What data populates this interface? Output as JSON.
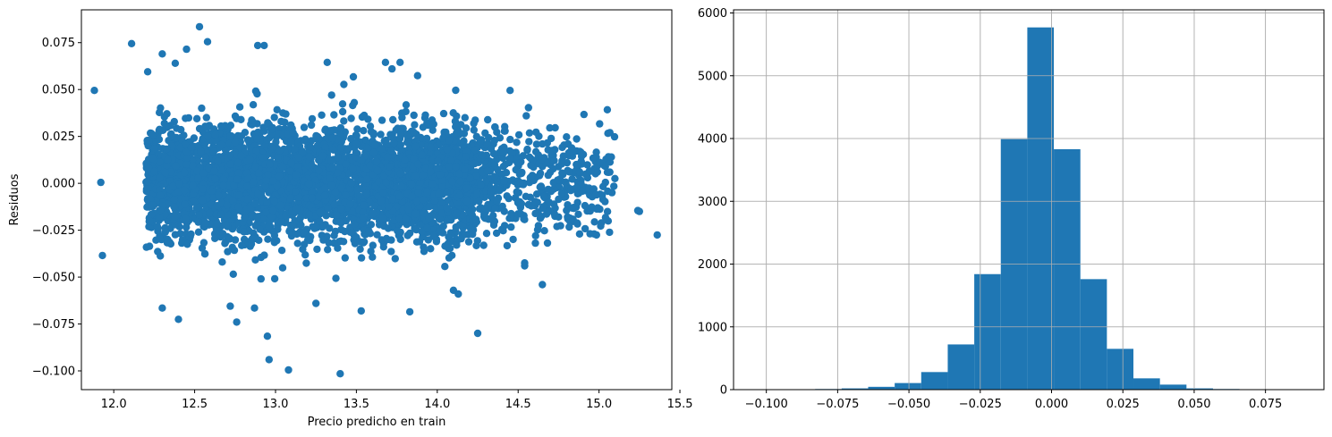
{
  "colors": {
    "series": "#1f77b4",
    "grid": "#b0b0b0",
    "axis": "#000000"
  },
  "chart_data": [
    {
      "type": "scatter",
      "title": "",
      "xlabel": "Precio predicho en train",
      "ylabel": "Residuos",
      "xlim": [
        11.8,
        15.45
      ],
      "ylim": [
        -0.11,
        0.0925
      ],
      "xticks": [
        12.0,
        12.5,
        13.0,
        13.5,
        14.0,
        14.5,
        15.0,
        15.5
      ],
      "xticklabels": [
        "12.0",
        "12.5",
        "13.0",
        "13.5",
        "14.0",
        "14.5",
        "15.0",
        "15.5"
      ],
      "yticks": [
        -0.1,
        -0.075,
        -0.05,
        -0.025,
        0.0,
        0.025,
        0.05,
        0.075
      ],
      "yticklabels": [
        "−0.100",
        "−0.075",
        "−0.050",
        "−0.025",
        "0.000",
        "0.025",
        "0.050",
        "0.075"
      ],
      "grid": false,
      "distribution": {
        "x_range": [
          11.88,
          15.36
        ],
        "x_core": [
          12.2,
          14.2
        ],
        "residual_std": 0.015
      },
      "points": [
        {
          "x": 11.88,
          "y": 0.0495
        },
        {
          "x": 11.92,
          "y": 0.0005
        },
        {
          "x": 11.93,
          "y": -0.0385
        },
        {
          "x": 12.11,
          "y": 0.0745
        },
        {
          "x": 12.53,
          "y": 0.0835
        },
        {
          "x": 12.58,
          "y": 0.0755
        },
        {
          "x": 12.45,
          "y": 0.0715
        },
        {
          "x": 12.89,
          "y": 0.0735
        },
        {
          "x": 12.93,
          "y": 0.0735
        },
        {
          "x": 13.68,
          "y": 0.0645
        },
        {
          "x": 13.77,
          "y": 0.0645
        },
        {
          "x": 13.32,
          "y": 0.0645
        },
        {
          "x": 12.95,
          "y": -0.0815
        },
        {
          "x": 12.96,
          "y": -0.094
        },
        {
          "x": 13.08,
          "y": -0.0995
        },
        {
          "x": 13.4,
          "y": -0.1015
        },
        {
          "x": 14.25,
          "y": -0.08
        },
        {
          "x": 12.76,
          "y": -0.074
        },
        {
          "x": 12.4,
          "y": -0.0725
        },
        {
          "x": 13.83,
          "y": -0.0685
        },
        {
          "x": 14.65,
          "y": -0.054
        },
        {
          "x": 15.36,
          "y": -0.0275
        },
        {
          "x": 15.25,
          "y": -0.015
        },
        {
          "x": 15.24,
          "y": -0.0145
        },
        {
          "x": 15.08,
          "y": -0.005
        },
        {
          "x": 14.97,
          "y": -0.027
        },
        {
          "x": 14.99,
          "y": 0.006
        },
        {
          "x": 14.97,
          "y": 0.0065
        },
        {
          "x": 14.94,
          "y": 0.0065
        },
        {
          "x": 14.98,
          "y": -0.006
        },
        {
          "x": 14.95,
          "y": 0.0065
        },
        {
          "x": 14.88,
          "y": 0.006
        },
        {
          "x": 14.88,
          "y": -0.027
        },
        {
          "x": 14.86,
          "y": 0.01
        },
        {
          "x": 14.78,
          "y": 0.0145
        },
        {
          "x": 14.75,
          "y": -0.0085
        },
        {
          "x": 14.74,
          "y": -0.023
        },
        {
          "x": 14.65,
          "y": 0.021
        },
        {
          "x": 14.68,
          "y": 0.0215
        },
        {
          "x": 14.71,
          "y": 0.0175
        },
        {
          "x": 14.57,
          "y": 0.014
        },
        {
          "x": 14.54,
          "y": -0.044
        },
        {
          "x": 14.45,
          "y": 0.0495
        },
        {
          "x": 14.55,
          "y": 0.036
        },
        {
          "x": 14.13,
          "y": -0.059
        },
        {
          "x": 14.1,
          "y": -0.057
        },
        {
          "x": 13.72,
          "y": 0.061
        },
        {
          "x": 13.25,
          "y": -0.064
        },
        {
          "x": 13.53,
          "y": -0.068
        },
        {
          "x": 12.87,
          "y": -0.0665
        },
        {
          "x": 12.72,
          "y": -0.0655
        },
        {
          "x": 12.3,
          "y": -0.0665
        },
        {
          "x": 12.21,
          "y": 0.0595
        },
        {
          "x": 12.3,
          "y": 0.069
        },
        {
          "x": 12.38,
          "y": 0.064
        }
      ]
    },
    {
      "type": "bar",
      "title": "",
      "xlabel": "",
      "ylabel": "",
      "xlim": [
        -0.1115,
        0.0955
      ],
      "ylim": [
        0,
        6050
      ],
      "xticks": [
        -0.1,
        -0.075,
        -0.05,
        -0.025,
        0.0,
        0.025,
        0.05,
        0.075
      ],
      "xticklabels": [
        "−0.100",
        "−0.075",
        "−0.050",
        "−0.025",
        "0.000",
        "0.025",
        "0.050",
        "0.075"
      ],
      "yticks": [
        0,
        1000,
        2000,
        3000,
        4000,
        5000,
        6000
      ],
      "yticklabels": [
        "0",
        "1000",
        "2000",
        "3000",
        "4000",
        "5000",
        "6000"
      ],
      "grid": true,
      "bin_edges": [
        -0.1015,
        -0.0922,
        -0.0829,
        -0.0736,
        -0.0643,
        -0.055,
        -0.0457,
        -0.0364,
        -0.0271,
        -0.0178,
        -0.0085,
        0.0008,
        0.0101,
        0.0194,
        0.0287,
        0.038,
        0.0473,
        0.0566,
        0.0659,
        0.0752,
        0.0845
      ],
      "values": [
        2,
        3,
        10,
        20,
        45,
        105,
        280,
        720,
        1840,
        3990,
        5770,
        3830,
        1760,
        650,
        180,
        80,
        20,
        10,
        5,
        2
      ]
    }
  ]
}
